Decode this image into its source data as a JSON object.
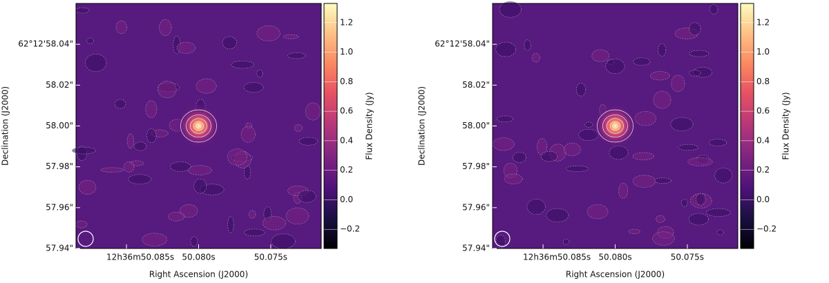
{
  "chart_data": [
    {
      "type": "heatmap",
      "xlabel": "Right Ascension (J2000)",
      "ylabel": "Declination (J2000)",
      "colorbar_label": "Flux Density (Jy)",
      "xlim": [
        50.0885,
        50.0715
      ],
      "xticks": [
        {
          "value": 50.085,
          "label": "12h36m50.085s"
        },
        {
          "value": 50.08,
          "label": "50.080s"
        },
        {
          "value": 50.075,
          "label": "50.075s"
        }
      ],
      "ylim": [
        57.94,
        58.06
      ],
      "yticks": [
        {
          "value": 57.94,
          "label": "57.94\""
        },
        {
          "value": 57.96,
          "label": "57.96\""
        },
        {
          "value": 57.98,
          "label": "57.98\""
        },
        {
          "value": 58.0,
          "label": "58.00\""
        },
        {
          "value": 58.02,
          "label": "58.02\""
        },
        {
          "value": 58.04,
          "label": "62°12'58.04\""
        }
      ],
      "clim": [
        -0.33,
        1.33
      ],
      "cticks": [
        {
          "value": -0.2,
          "label": "−0.2"
        },
        {
          "value": 0,
          "label": "0.0"
        },
        0.2,
        0.4,
        0.6,
        0.8,
        {
          "value": 1,
          "label": "1.0"
        },
        1.2
      ]
    },
    {
      "type": "heatmap",
      "xlabel": "Right Ascension (J2000)",
      "ylabel": "Declination (J2000)",
      "colorbar_label": "Flux Density (Jy)",
      "xlim": [
        50.0885,
        50.0715
      ],
      "xticks": [
        {
          "value": 50.085,
          "label": "12h36m50.085s"
        },
        {
          "value": 50.08,
          "label": "50.080s"
        },
        {
          "value": 50.075,
          "label": "50.075s"
        }
      ],
      "ylim": [
        57.94,
        58.06
      ],
      "yticks": [
        {
          "value": 57.94,
          "label": "57.94\""
        },
        {
          "value": 57.96,
          "label": "57.96\""
        },
        {
          "value": 57.98,
          "label": "57.98\""
        },
        {
          "value": 58.0,
          "label": "58.00\""
        },
        {
          "value": 58.02,
          "label": "58.02\""
        },
        {
          "value": 58.04,
          "label": "62°12'58.04\""
        }
      ],
      "clim": [
        -0.33,
        1.33
      ],
      "cticks": [
        {
          "value": -0.2,
          "label": "−0.2"
        },
        {
          "value": 0,
          "label": "0.0"
        },
        0.2,
        0.4,
        0.6,
        0.8,
        {
          "value": 1,
          "label": "1.0"
        },
        1.2
      ]
    }
  ]
}
